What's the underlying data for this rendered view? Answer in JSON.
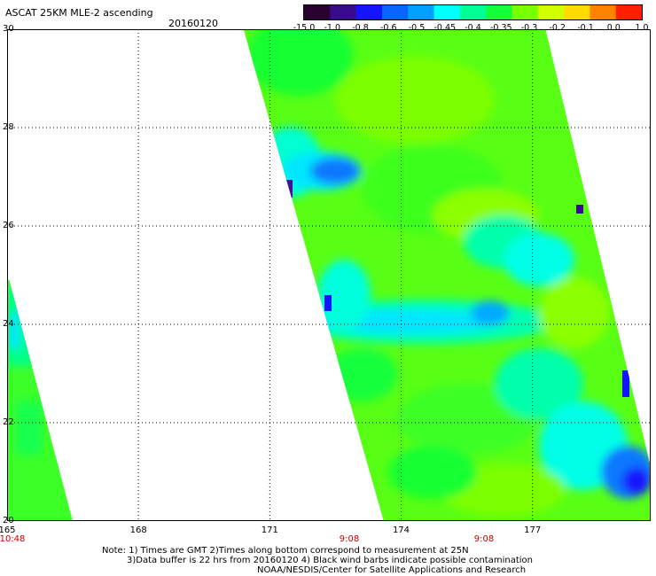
{
  "header": {
    "title": "ASCAT 25KM MLE-2 ascending",
    "date": "20160120"
  },
  "colorbar": {
    "labels": [
      "-15.0",
      "-1.0",
      "-0.8",
      "-0.6",
      "-0.5",
      "-0.45",
      "-0.4",
      "-0.35",
      "-0.3",
      "-0.2",
      "-0.1",
      "0.0",
      "1.0"
    ],
    "colors": [
      "#2a0030",
      "#3a0a8c",
      "#1414ff",
      "#0a64ff",
      "#00a0ff",
      "#00ffff",
      "#00ff96",
      "#14ff3c",
      "#78ff00",
      "#d2ff00",
      "#ffdc00",
      "#ff8200",
      "#ff1e00"
    ]
  },
  "map": {
    "y_axis_labels": [
      "30",
      "28",
      "26",
      "24",
      "22",
      "20"
    ],
    "x_axis_labels": [
      "165",
      "168",
      "171",
      "174",
      "177"
    ],
    "pass_times": [
      "10:48",
      "9:08",
      "9:08"
    ],
    "lat_range": [
      20,
      30
    ],
    "lon_range": [
      165,
      179.7
    ],
    "grid": true,
    "swaths": [
      {
        "name": "west",
        "top_left_lon": 165.0,
        "top_lat": 24.9,
        "bottom_left_lon": 165.0,
        "bottom_right_lon": 166.5,
        "top_right_lon": 165.05
      },
      {
        "name": "main",
        "top_left_lon": 170.4,
        "bottom_left_lon": 173.6,
        "top_right_lon": 177.3,
        "bottom_right_lon": 180.0
      }
    ]
  },
  "notes": {
    "line1": "Note: 1) Times are GMT 2)Times along bottom correspond to measurement at 25N",
    "line2": "3)Data buffer is 22 hrs from 20160120 4) Black wind barbs indicate possible contamination",
    "line3": "NOAA/NESDIS/Center for Satellite Applications and Research"
  }
}
